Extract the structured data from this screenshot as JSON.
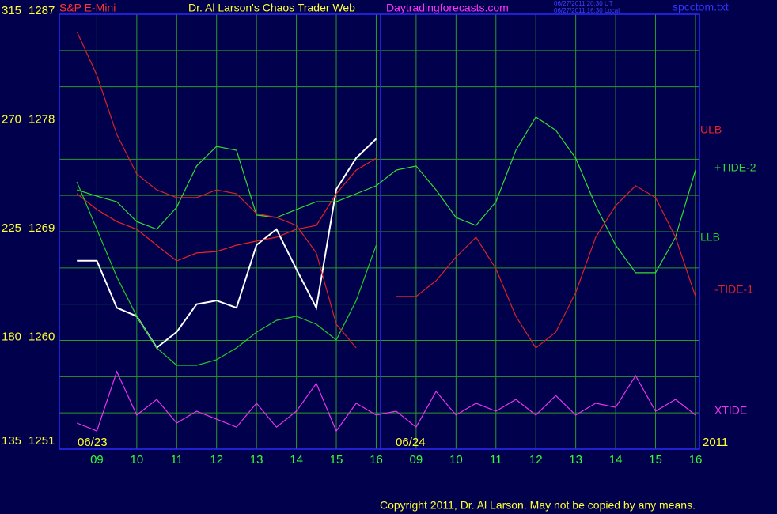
{
  "header": {
    "title": "Dr. Al Larson's Chaos Trader Web",
    "site": "Daytradingforecasts.com",
    "timestamp_ut": "06/27/2011 20:30 UT",
    "timestamp_local": "06/27/2011 16:30 Local",
    "file": "spcctom.txt",
    "copyright": "Copyright 2011, Dr. Al Larson. May not be copied by any means."
  },
  "chart_data": {
    "type": "line",
    "date_labels": [
      "06/23",
      "06/24",
      "2011"
    ],
    "x": [
      8.5,
      9,
      9.5,
      10,
      10.5,
      11,
      11.5,
      12,
      12.5,
      13,
      13.5,
      14,
      14.5,
      15,
      15.5,
      16,
      16.5,
      17,
      17.5,
      18,
      18.5,
      19,
      19.5,
      20,
      20.5,
      21,
      21.5,
      22,
      22.5,
      23,
      23.5,
      24
    ],
    "xlim": [
      8.06,
      24.1
    ],
    "xticks": [
      {
        "value": 9,
        "label": "09"
      },
      10,
      11,
      12,
      13,
      14,
      15,
      16,
      {
        "value": 17,
        "label": "09"
      },
      {
        "value": 18,
        "label": "10"
      },
      {
        "value": 19,
        "label": "11"
      },
      {
        "value": 20,
        "label": "12"
      },
      {
        "value": 21,
        "label": "13"
      },
      {
        "value": 22,
        "label": "14"
      },
      {
        "value": 23,
        "label": "15"
      },
      {
        "value": 24,
        "label": "16"
      }
    ],
    "ylim": [
      135,
      315
    ],
    "yticks": [
      135,
      180,
      225,
      270,
      315
    ],
    "ygrid": [
      135,
      150,
      165,
      180,
      195,
      210,
      225,
      240,
      255,
      270,
      285,
      300,
      315
    ],
    "y2lim": [
      1251,
      1287
    ],
    "y2ticks": [
      1251,
      1260,
      1269,
      1278,
      1287
    ],
    "grid": true,
    "grid_color": "#2a9a2a",
    "background": "#00004d",
    "frame_color": "#2a2aff",
    "series": [
      {
        "name": "S&P E-Mini",
        "color": "#ffffff",
        "axis": "y2",
        "values": [
          1266.6,
          1266.6,
          1262.7,
          1262.0,
          1259.4,
          1260.7,
          1263.0,
          1263.3,
          1262.7,
          1267.9,
          1269.2,
          1265.9,
          1262.7,
          1272.5,
          1275.1,
          1276.7,
          null,
          null,
          null,
          null,
          null,
          null,
          null,
          null,
          null,
          null,
          null,
          null,
          null,
          null,
          null,
          null
        ]
      },
      {
        "name": "ULB",
        "color": "#ee2222",
        "values": [
          240.7,
          234.2,
          229.2,
          226.0,
          219.4,
          212.9,
          216.2,
          216.8,
          219.4,
          221.1,
          222.7,
          226.0,
          227.6,
          240.7,
          250.5,
          255.4,
          null,
          null,
          null,
          null,
          null,
          null,
          null,
          null,
          null,
          null,
          null,
          null,
          null,
          null,
          null,
          null
        ]
      },
      {
        "name": "+TIDE-2",
        "color": "#33dd33",
        "values": [
          242.3,
          239.7,
          237.4,
          229.2,
          226.0,
          235.1,
          252.2,
          260.3,
          258.7,
          231.9,
          230.9,
          234.2,
          237.4,
          237.4,
          240.7,
          244.0,
          250.5,
          252.2,
          242.3,
          230.9,
          227.6,
          237.4,
          258.7,
          272.5,
          267.0,
          255.4,
          235.8,
          219.4,
          208.0,
          208.0,
          222.7,
          250.5
        ]
      },
      {
        "name": "LLB",
        "color": "#22cc22",
        "values": [
          245.6,
          226.0,
          206.3,
          190.0,
          176.9,
          169.7,
          169.7,
          172.0,
          176.9,
          183.4,
          188.3,
          190.0,
          186.7,
          180.2,
          196.5,
          219.4,
          null,
          null,
          null,
          null,
          null,
          null,
          null,
          null,
          null,
          null,
          null,
          null,
          null,
          null,
          null,
          null
        ]
      },
      {
        "name": "-TIDE-1",
        "color": "#dd2222",
        "values": [
          307.8,
          289.8,
          265.3,
          248.9,
          242.3,
          239.1,
          239.1,
          242.3,
          240.7,
          232.5,
          230.9,
          227.6,
          216.2,
          186.7,
          176.9,
          null,
          198.2,
          198.2,
          204.7,
          214.5,
          222.7,
          209.6,
          190.0,
          176.9,
          183.4,
          199.8,
          222.7,
          235.8,
          244.0,
          239.1,
          222.7,
          198.2
        ]
      },
      {
        "name": "XTIDE",
        "color": "#ee33ee",
        "values": [
          145.8,
          142.5,
          167.1,
          149.1,
          155.6,
          145.8,
          150.7,
          147.4,
          144.1,
          154.0,
          144.1,
          150.7,
          162.2,
          142.5,
          154.0,
          149.1,
          150.7,
          144.1,
          158.9,
          149.1,
          154.0,
          150.7,
          155.6,
          149.1,
          157.2,
          149.1,
          154.0,
          152.3,
          165.4,
          150.7,
          155.6,
          149.1
        ]
      }
    ]
  }
}
